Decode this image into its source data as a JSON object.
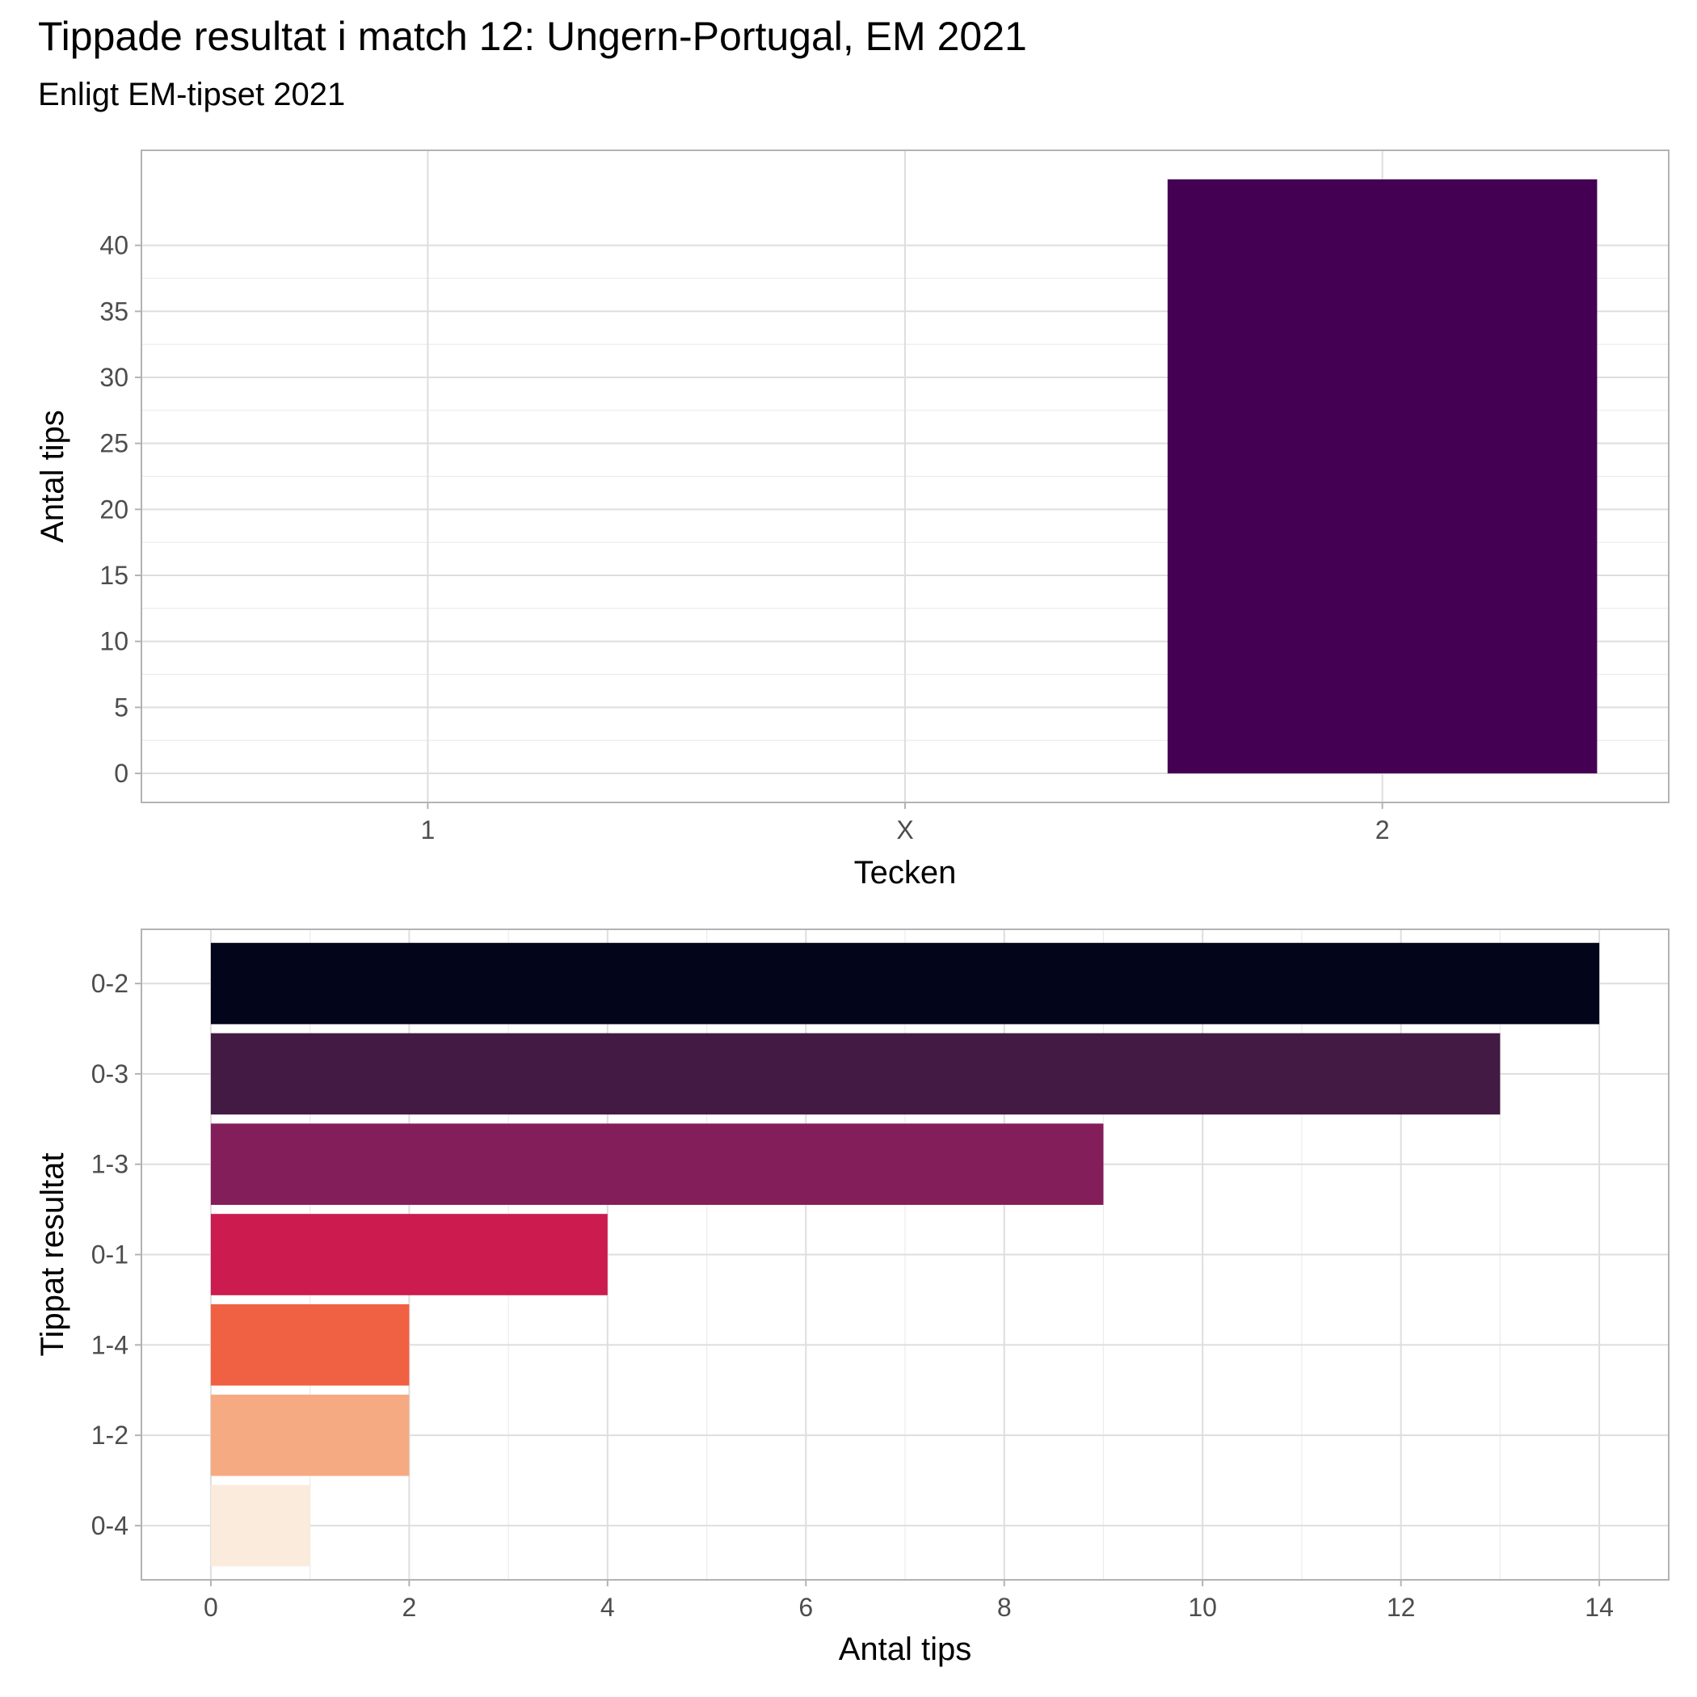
{
  "header": {
    "title": "Tippade resultat i match 12: Ungern-Portugal, EM 2021",
    "subtitle": "Enligt EM-tipset 2021"
  },
  "chart_data": [
    {
      "type": "bar",
      "orientation": "vertical",
      "categories": [
        "1",
        "X",
        "2"
      ],
      "values": [
        0,
        0,
        45
      ],
      "xlabel": "Tecken",
      "ylabel": "Antal tips",
      "ylim": [
        -2.2,
        47.2
      ],
      "yticks": [
        0,
        5,
        10,
        15,
        20,
        25,
        30,
        35,
        40
      ],
      "bar_color": "#440154",
      "grid": true
    },
    {
      "type": "bar",
      "orientation": "horizontal",
      "categories": [
        "0-2",
        "0-3",
        "1-3",
        "0-1",
        "1-4",
        "1-2",
        "0-4"
      ],
      "values": [
        14,
        13,
        9,
        4,
        2,
        2,
        1
      ],
      "colors": [
        "#03051A",
        "#421A43",
        "#841E5A",
        "#CB1B4F",
        "#F06043",
        "#F6AA82",
        "#FAEBDD"
      ],
      "xlabel": "Antal tips",
      "ylabel": "Tippat resultat",
      "xlim": [
        -0.7,
        14.7
      ],
      "xticks": [
        0,
        2,
        4,
        6,
        8,
        10,
        12,
        14
      ],
      "grid": true
    }
  ]
}
